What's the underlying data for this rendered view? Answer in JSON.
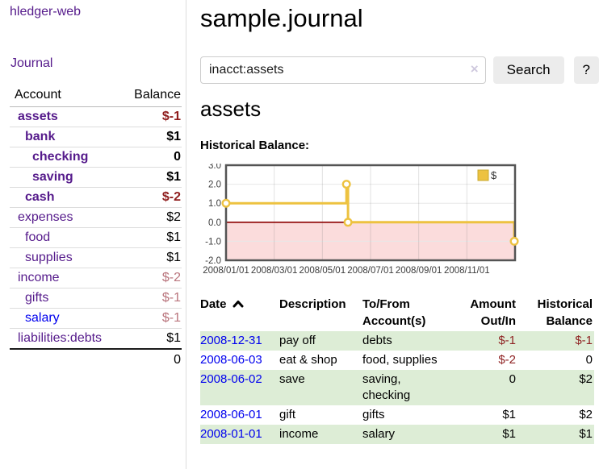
{
  "app": {
    "brand": "hledger-web"
  },
  "sidebar": {
    "journal_link": "Journal",
    "accounts": {
      "headers": {
        "account": "Account",
        "balance": "Balance"
      },
      "rows": [
        {
          "name": "assets",
          "depth": 0,
          "balance": "$-1",
          "bold": true,
          "neg": "strong"
        },
        {
          "name": "bank",
          "depth": 1,
          "balance": "$1",
          "bold": true
        },
        {
          "name": "checking",
          "depth": 2,
          "balance": "0",
          "bold": true
        },
        {
          "name": "saving",
          "depth": 2,
          "balance": "$1",
          "bold": true
        },
        {
          "name": "cash",
          "depth": 1,
          "balance": "$-2",
          "bold": true,
          "neg": "strong"
        },
        {
          "name": "expenses",
          "depth": 0,
          "balance": "$2"
        },
        {
          "name": "food",
          "depth": 1,
          "balance": "$1"
        },
        {
          "name": "supplies",
          "depth": 1,
          "balance": "$1"
        },
        {
          "name": "income",
          "depth": 0,
          "balance": "$-2",
          "neg": "soft"
        },
        {
          "name": "gifts",
          "depth": 1,
          "balance": "$-1",
          "neg": "soft"
        },
        {
          "name": "salary",
          "depth": 1,
          "balance": "$-1",
          "neg": "soft",
          "blue": true
        },
        {
          "name": "liabilities:debts",
          "depth": 0,
          "balance": "$1"
        }
      ],
      "total": "0"
    }
  },
  "main": {
    "title": "sample.journal",
    "search": {
      "value": "inacct:assets",
      "clear_label": "×",
      "search_button": "Search",
      "help_button": "?"
    },
    "heading": "assets",
    "chart_title": "Historical Balance:"
  },
  "register": {
    "headers": {
      "date": "Date",
      "description": "Description",
      "accounts": "To/From Account(s)",
      "amount": "Amount Out/In",
      "balance": "Historical Balance"
    },
    "rows": [
      {
        "date": "2008-12-31",
        "description": "pay off",
        "accounts": "debts",
        "amount": "$-1",
        "amount_neg": true,
        "balance": "$-1",
        "balance_neg": true
      },
      {
        "date": "2008-06-03",
        "description": "eat & shop",
        "accounts": "food, supplies",
        "amount": "$-2",
        "amount_neg": true,
        "balance": "0",
        "balance_neg": false
      },
      {
        "date": "2008-06-02",
        "description": "save",
        "accounts": "saving, checking",
        "amount": "0",
        "amount_neg": false,
        "balance": "$2",
        "balance_neg": false
      },
      {
        "date": "2008-06-01",
        "description": "gift",
        "accounts": "gifts",
        "amount": "$1",
        "amount_neg": false,
        "balance": "$2",
        "balance_neg": false
      },
      {
        "date": "2008-01-01",
        "description": "income",
        "accounts": "salary",
        "amount": "$1",
        "amount_neg": false,
        "balance": "$1",
        "balance_neg": false
      }
    ]
  },
  "chart_data": {
    "type": "line",
    "title": "Historical Balance:",
    "step": true,
    "legend": [
      {
        "label": "$",
        "color": "#edc240"
      }
    ],
    "points": [
      {
        "date": "2008-01-01",
        "value": 1
      },
      {
        "date": "2008-06-01",
        "value": 2
      },
      {
        "date": "2008-06-03",
        "value": 0
      },
      {
        "date": "2008-12-31",
        "value": -1
      }
    ],
    "ylim": [
      -2,
      3
    ],
    "x_range": [
      "2008-01-01",
      "2009-01-01"
    ],
    "yticks": [
      "3.0",
      "2.0",
      "1.0",
      "0.0",
      "-1.0",
      "-2.0"
    ],
    "xticks": [
      "2008/01/01",
      "2008/03/01",
      "2008/05/01",
      "2008/07/01",
      "2008/09/01",
      "2008/11/01"
    ],
    "colors": {
      "series": "#edc240",
      "marker_fill": "#ffffff",
      "zero_line": "#8b0000",
      "negative_fill": "#fbdcdc",
      "grid": "#e7e7e7",
      "border": "#545454",
      "tick_text": "#3c3c3c"
    },
    "legend_position": "top-right",
    "grid": true
  }
}
